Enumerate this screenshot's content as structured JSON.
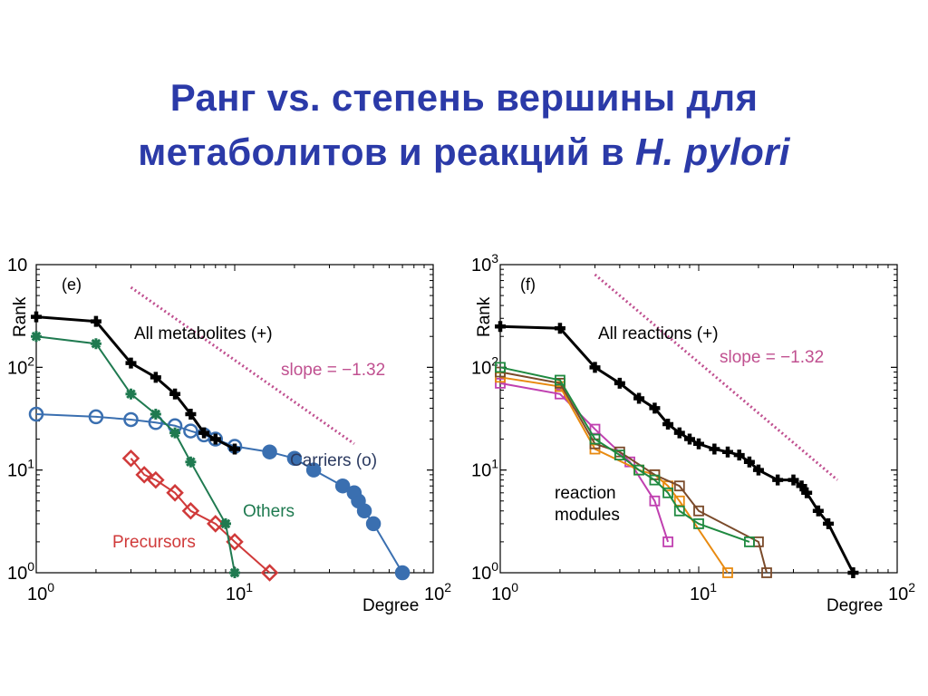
{
  "title": {
    "line1": "Ранг vs. степень вершины  для",
    "line2_prefix": "метаболитов и реакций в ",
    "line2_italic": "H. pylori"
  },
  "colors": {
    "title": "#2b3aa8",
    "all": "#000000",
    "carriers": "#3a6fb0",
    "others": "#1f7a50",
    "precursors": "#d03a3a",
    "slope": "#c05090",
    "module_green": "#1f8a40",
    "module_orange": "#e88a10",
    "module_brown": "#7a4a2a",
    "module_magenta": "#c040b0"
  },
  "chart_data": [
    {
      "type": "line",
      "panel": "(e)",
      "xlabel": "Degree",
      "ylabel": "Rank",
      "xscale": "log",
      "yscale": "log",
      "xlim": [
        1,
        100
      ],
      "ylim": [
        1,
        1000
      ],
      "x_ticks": [
        {
          "v": 1,
          "base": "10",
          "exp": "0"
        },
        {
          "v": 10,
          "base": "10",
          "exp": "1"
        },
        {
          "v": 100,
          "base": "10",
          "exp": "2"
        }
      ],
      "y_ticks": [
        {
          "v": 1,
          "base": "10",
          "exp": "0"
        },
        {
          "v": 10,
          "base": "10",
          "exp": "1"
        },
        {
          "v": 100,
          "base": "10",
          "exp": "2"
        },
        {
          "v": 1000,
          "base": "10",
          "exp": ""
        }
      ],
      "series": [
        {
          "name": "All metabolites (+)",
          "marker": "plus",
          "color": "#000000",
          "x": [
            1,
            2,
            3,
            4,
            5,
            6,
            7,
            8,
            10
          ],
          "y": [
            310,
            280,
            110,
            80,
            55,
            35,
            23,
            20,
            16
          ]
        },
        {
          "name": "Others",
          "marker": "star",
          "color": "#1f7a50",
          "x": [
            1,
            2,
            3,
            4,
            5,
            6,
            9,
            10
          ],
          "y": [
            200,
            170,
            55,
            35,
            23,
            12,
            3,
            1
          ]
        },
        {
          "name": "Carriers (o)",
          "marker": "circle",
          "color": "#3a6fb0",
          "x": [
            1,
            2,
            3,
            4,
            5,
            6,
            7,
            8,
            10,
            15,
            20,
            25,
            35,
            40,
            42,
            45,
            50,
            70
          ],
          "y": [
            35,
            33,
            31,
            29,
            27,
            24,
            22,
            20,
            17,
            15,
            13,
            10,
            7,
            6,
            5,
            4,
            3,
            1
          ]
        },
        {
          "name": "Precursors",
          "marker": "diamond",
          "color": "#d03a3a",
          "x": [
            3,
            3.5,
            4,
            5,
            6,
            8,
            10,
            15
          ],
          "y": [
            13,
            9,
            8,
            6,
            4,
            3,
            2,
            1
          ]
        }
      ],
      "reference_line": {
        "label": "slope = −1.32",
        "x": [
          3,
          40
        ],
        "y": [
          600,
          18
        ]
      }
    },
    {
      "type": "line",
      "panel": "(f)",
      "xlabel": "Degree",
      "ylabel": "Rank",
      "xscale": "log",
      "yscale": "log",
      "xlim": [
        1,
        100
      ],
      "ylim": [
        1,
        1000
      ],
      "x_ticks": [
        {
          "v": 1,
          "base": "10",
          "exp": "0"
        },
        {
          "v": 10,
          "base": "10",
          "exp": "1"
        },
        {
          "v": 100,
          "base": "10",
          "exp": "2"
        }
      ],
      "y_ticks": [
        {
          "v": 1,
          "base": "10",
          "exp": "0"
        },
        {
          "v": 10,
          "base": "10",
          "exp": "1"
        },
        {
          "v": 100,
          "base": "10",
          "exp": "2"
        },
        {
          "v": 1000,
          "base": "10",
          "exp": "3"
        }
      ],
      "series": [
        {
          "name": "All reactions (+)",
          "marker": "plus",
          "color": "#000000",
          "x": [
            1,
            2,
            3,
            4,
            5,
            6,
            7,
            8,
            9,
            10,
            12,
            14,
            16,
            18,
            20,
            25,
            30,
            33,
            35,
            40,
            45,
            60
          ],
          "y": [
            250,
            240,
            100,
            70,
            50,
            40,
            28,
            23,
            20,
            18,
            16,
            15,
            14,
            12,
            10,
            8,
            8,
            7,
            6,
            4,
            3,
            1
          ]
        },
        {
          "name": "",
          "marker": "square",
          "color": "#1f8a40",
          "x": [
            1,
            2,
            3,
            4,
            5,
            6,
            7,
            8,
            10,
            18
          ],
          "y": [
            100,
            75,
            20,
            14,
            10,
            8,
            6,
            4,
            3,
            2
          ]
        },
        {
          "name": "",
          "marker": "square",
          "color": "#7a4a2a",
          "x": [
            1,
            2,
            3,
            4,
            6,
            8,
            10,
            20,
            22
          ],
          "y": [
            90,
            70,
            18,
            15,
            9,
            7,
            4,
            2,
            1
          ]
        },
        {
          "name": "",
          "marker": "square",
          "color": "#e88a10",
          "x": [
            1,
            2,
            3,
            5,
            6,
            7,
            8,
            14
          ],
          "y": [
            80,
            65,
            16,
            10,
            9,
            7,
            5,
            1
          ]
        },
        {
          "name": "",
          "marker": "square",
          "color": "#c040b0",
          "x": [
            1,
            2,
            3,
            4.5,
            6,
            7
          ],
          "y": [
            70,
            55,
            25,
            12,
            5,
            2
          ]
        }
      ],
      "reference_line": {
        "label": "slope = −1.32",
        "x": [
          3,
          50
        ],
        "y": [
          800,
          8
        ]
      },
      "annotation": {
        "line1": "reaction",
        "line2": "modules"
      }
    }
  ]
}
